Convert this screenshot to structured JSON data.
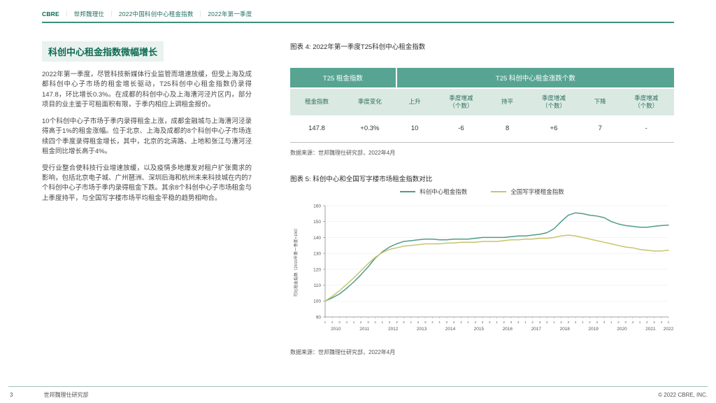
{
  "header": {
    "brand": "CBRE",
    "separator": "｜",
    "part1": "世邦魏理仕",
    "part2": "2022中国科创中心租金指数",
    "part3": "2022年第一季度"
  },
  "article": {
    "title": "科创中心租金指数微幅增长",
    "paragraphs": [
      "2022年第一季度，尽管科技新媒体行业监管而增速放缓，但受上海及成都科创中心子市场的租金增长驱动，T25科创中心租金指数仍录得147.8，环比增长0.3%。在成都的科创中心及上海漕河泾片区内，部分项目的业主鉴于可租面积有限，于季内相应上调租金报价。",
      "10个科创中心子市场于季内录得租金上涨，成都金融城与上海漕河泾录得高于1%的租金涨幅。位于北京、上海及成都的8个科创中心子市场连续四个季度录得租金增长，其中，北京的北清路、上地和张江与漕河泾租金同比增长高于4%。",
      "受行业整合使科技行业增速放缓，以及疫情多地爆发对租户扩张需求的影响，包括北京电子城、广州琶洲、深圳后海和杭州未来科技城在内的7个科创中心子市场于季内录得租金下跌。其余8个科创中心子市场租金与上季度持平，与全国写字楼市场平均租金平稳的趋势相吻合。"
    ]
  },
  "figure4": {
    "caption": "图表 4: 2022年第一季度T25科创中心租金指数",
    "table": {
      "group_headers": [
        "T25 租金指数",
        "T25 科创中心租金涨跌个数"
      ],
      "columns": [
        "租金指数",
        "季度变化",
        "上升",
        "季度增减\n（个数）",
        "持平",
        "季度增减\n（个数）",
        "下降",
        "季度增减\n（个数）"
      ],
      "row": [
        "147.8",
        "+0.3%",
        "10",
        "-6",
        "8",
        "+6",
        "7",
        "-"
      ]
    },
    "source": "数据来源：世邦魏理仕研究部，2022年4月"
  },
  "figure5": {
    "caption": "图表 5: 科创中心和全国写字楼市场租金指数对比",
    "source": "数据来源：世邦魏理仕研究部，2022年4月"
  },
  "chart_data": {
    "type": "line",
    "title": "科创中心和全国写字楼市场租金指数对比",
    "ylabel": "可比租金指数（2010年第一季度=100）",
    "ylim": [
      90,
      160
    ],
    "yticks": [
      90,
      100,
      110,
      120,
      130,
      140,
      150,
      160
    ],
    "grid": "light-horizontal",
    "legend_position": "top-center",
    "x_years": [
      {
        "year": "2010",
        "quarters": 4
      },
      {
        "year": "2011",
        "quarters": 4
      },
      {
        "year": "2012",
        "quarters": 4
      },
      {
        "year": "2013",
        "quarters": 4
      },
      {
        "year": "2014",
        "quarters": 4
      },
      {
        "year": "2015",
        "quarters": 4
      },
      {
        "year": "2016",
        "quarters": 4
      },
      {
        "year": "2017",
        "quarters": 4
      },
      {
        "year": "2018",
        "quarters": 4
      },
      {
        "year": "2019",
        "quarters": 4
      },
      {
        "year": "2020",
        "quarters": 4
      },
      {
        "year": "2021",
        "quarters": 4
      },
      {
        "year": "2022",
        "quarters": 1
      }
    ],
    "series": [
      {
        "name": "科创中心租金指数",
        "color": "#4E9C8B",
        "values": [
          100,
          102,
          104.5,
          108,
          112,
          116.5,
          121.5,
          127,
          131,
          134,
          136,
          137.5,
          138,
          138.5,
          139,
          139,
          138.5,
          138.5,
          139,
          139,
          139,
          139.5,
          140,
          140,
          140,
          140,
          140.5,
          141,
          141,
          141.5,
          142,
          143,
          145.5,
          150,
          154,
          155.5,
          155,
          154,
          153.5,
          152.5,
          150,
          148.5,
          147.5,
          147,
          146.5,
          146.5,
          147,
          147.5,
          147.8
        ]
      },
      {
        "name": "全国写字楼租金指数",
        "color": "#C9C36A",
        "values": [
          100,
          103,
          106.5,
          110.5,
          114.5,
          119,
          123.5,
          127.5,
          130.5,
          132.5,
          133.5,
          134.5,
          135,
          135.5,
          136,
          136,
          136,
          136.5,
          136.5,
          137,
          137,
          137,
          137.5,
          137.5,
          137.5,
          138,
          138.5,
          138.5,
          139,
          139,
          139.5,
          139.5,
          140,
          141,
          141.5,
          141,
          140,
          139,
          138,
          137,
          136,
          135,
          134,
          133.5,
          132.5,
          132,
          131.5,
          131.5,
          132
        ]
      }
    ]
  },
  "footer": {
    "page_number": "3",
    "left": "世邦魏理仕研究部",
    "right": "© 2022 CBRE, INC."
  }
}
